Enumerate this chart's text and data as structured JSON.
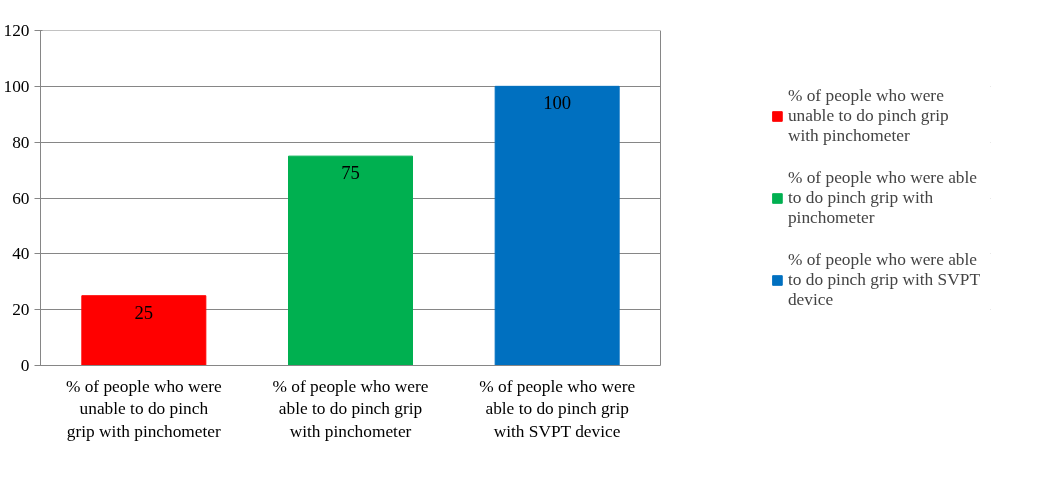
{
  "chart_data": {
    "type": "bar",
    "categories": [
      "% of people who were unable to do pinch grip with pinchometer",
      "% of people who were able to do pinch grip with pinchometer",
      "% of people who were able to do pinch grip with SVPT device"
    ],
    "series": [
      {
        "name": "% of people who were unable to do pinch grip with pinchometer",
        "color": "#ff0000",
        "values": [
          25,
          null,
          null
        ]
      },
      {
        "name": "% of people who were able to do pinch grip with pinchometer",
        "color": "#00b050",
        "values": [
          null,
          75,
          null
        ]
      },
      {
        "name": "% of people who were able to do pinch grip with SVPT device",
        "color": "#0070c0",
        "values": [
          null,
          null,
          100
        ]
      }
    ],
    "ylim": [
      0,
      120
    ],
    "yticks": [
      0,
      20,
      40,
      60,
      80,
      100,
      120
    ],
    "grid": "y",
    "legend": "right",
    "data_labels": true
  }
}
